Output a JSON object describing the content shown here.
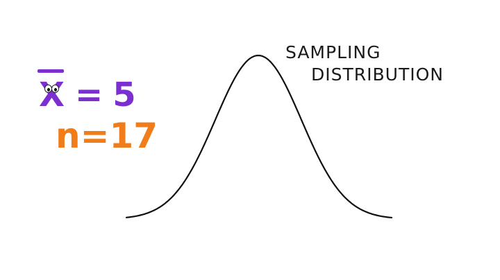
{
  "mean_equation": {
    "symbol": "X",
    "equals": "=",
    "value": "5",
    "color": "#7b2fd0"
  },
  "sample_equation": {
    "text": "n=17",
    "color": "#f07d1a"
  },
  "curve": {
    "label_line1": "SAMPLING",
    "label_line2": "DISTRIBUTION",
    "stroke_color": "#111111"
  }
}
